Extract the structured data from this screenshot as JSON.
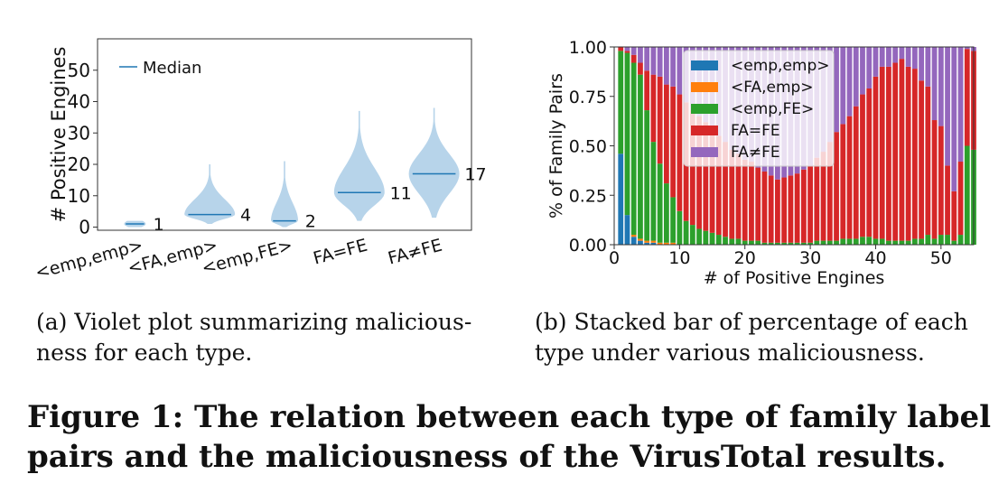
{
  "figure_title": "Figure 1: The relation between each type of family label pairs and the maliciousness of the VirusTotal results.",
  "subfigures": {
    "a": {
      "caption": "(a)  Violet plot summarizing malicious-ness for each type."
    },
    "b": {
      "caption": "(b)  Stacked bar of percentage of each type under various maliciousness."
    }
  },
  "chart_data": [
    {
      "type": "violin",
      "ylabel": "# Positive Engines",
      "ylim": [
        -1,
        60
      ],
      "yticks": [
        0,
        10,
        20,
        30,
        40,
        50
      ],
      "legend": {
        "entries": [
          "Median"
        ],
        "position": "top-left"
      },
      "categories": [
        "<emp,emp>",
        "<FA,emp>",
        "<emp,FE>",
        "FA=FE",
        "FA≠FE"
      ],
      "medians": [
        1,
        4,
        2,
        11,
        17
      ],
      "median_labels": [
        "1",
        "4",
        "2",
        "11",
        "17"
      ],
      "ranges": [
        [
          0,
          2
        ],
        [
          1,
          20
        ],
        [
          0,
          21
        ],
        [
          2,
          37
        ],
        [
          3,
          38
        ]
      ],
      "color": "#b7d4ea",
      "median_color": "#1f77b4"
    },
    {
      "type": "stacked_bar",
      "xlabel": "# of Positive Engines",
      "ylabel": "% of Family Pairs",
      "xlim": [
        0,
        55
      ],
      "ylim": [
        0,
        1
      ],
      "xticks": [
        0,
        10,
        20,
        30,
        40,
        50
      ],
      "yticks": [
        0.0,
        0.25,
        0.5,
        0.75,
        1.0
      ],
      "ytick_labels": [
        "0.00",
        "0.25",
        "0.50",
        "0.75",
        "1.00"
      ],
      "legend_position": "top-center",
      "x": [
        1,
        2,
        3,
        4,
        5,
        6,
        7,
        8,
        9,
        10,
        11,
        12,
        13,
        14,
        15,
        16,
        17,
        18,
        19,
        20,
        21,
        22,
        23,
        24,
        25,
        26,
        27,
        28,
        29,
        30,
        31,
        32,
        33,
        34,
        35,
        36,
        37,
        38,
        39,
        40,
        41,
        42,
        43,
        44,
        45,
        46,
        47,
        48,
        49,
        50,
        51,
        52,
        53,
        54,
        55
      ],
      "series": [
        {
          "name": "<emp,emp>",
          "color": "#1f77b4",
          "values": [
            0.46,
            0.15,
            0.04,
            0.02,
            0.01,
            0.01,
            0,
            0,
            0,
            0,
            0,
            0,
            0,
            0,
            0,
            0,
            0,
            0,
            0,
            0,
            0,
            0,
            0,
            0,
            0,
            0,
            0,
            0,
            0,
            0,
            0,
            0,
            0,
            0,
            0,
            0,
            0,
            0,
            0,
            0,
            0,
            0,
            0,
            0,
            0,
            0,
            0,
            0,
            0,
            0,
            0,
            0,
            0,
            0,
            0
          ]
        },
        {
          "name": "<FA,emp>",
          "color": "#ff7f0e",
          "values": [
            0,
            0,
            0.01,
            0.01,
            0.01,
            0.01,
            0.01,
            0.01,
            0.01,
            0,
            0,
            0,
            0,
            0,
            0,
            0,
            0,
            0,
            0,
            0,
            0,
            0,
            0,
            0,
            0,
            0,
            0,
            0,
            0,
            0,
            0,
            0,
            0,
            0,
            0,
            0,
            0,
            0,
            0,
            0,
            0,
            0,
            0,
            0,
            0,
            0,
            0,
            0,
            0,
            0,
            0,
            0,
            0,
            0,
            0
          ]
        },
        {
          "name": "<emp,FE>",
          "color": "#2ca02c",
          "values": [
            0.52,
            0.82,
            0.87,
            0.83,
            0.66,
            0.5,
            0.4,
            0.3,
            0.23,
            0.17,
            0.12,
            0.1,
            0.08,
            0.07,
            0.06,
            0.05,
            0.04,
            0.03,
            0.03,
            0.02,
            0.02,
            0.02,
            0.01,
            0.01,
            0.01,
            0.01,
            0.01,
            0.01,
            0.01,
            0.01,
            0.02,
            0.02,
            0.02,
            0.02,
            0.03,
            0.03,
            0.03,
            0.04,
            0.04,
            0.03,
            0.03,
            0.02,
            0.02,
            0.02,
            0.02,
            0.03,
            0.03,
            0.05,
            0.03,
            0.05,
            0.05,
            0.02,
            0.05,
            0.5,
            0.48
          ]
        },
        {
          "name": "FA=FE",
          "color": "#d62728",
          "values": [
            0.02,
            0.01,
            0.04,
            0.06,
            0.2,
            0.34,
            0.44,
            0.5,
            0.56,
            0.59,
            0.6,
            0.58,
            0.57,
            0.55,
            0.53,
            0.5,
            0.48,
            0.45,
            0.43,
            0.41,
            0.4,
            0.37,
            0.36,
            0.34,
            0.32,
            0.33,
            0.34,
            0.35,
            0.37,
            0.39,
            0.42,
            0.45,
            0.5,
            0.55,
            0.58,
            0.62,
            0.67,
            0.72,
            0.75,
            0.82,
            0.87,
            0.88,
            0.9,
            0.92,
            0.88,
            0.86,
            0.8,
            0.75,
            0.6,
            0.55,
            0.35,
            0.25,
            0.37,
            0.49,
            0.5
          ]
        },
        {
          "name": "FA≠FE",
          "color": "#9467bd",
          "values": [
            0,
            0.02,
            0.04,
            0.08,
            0.12,
            0.14,
            0.15,
            0.19,
            0.2,
            0.24,
            0.28,
            0.32,
            0.35,
            0.38,
            0.41,
            0.45,
            0.48,
            0.52,
            0.54,
            0.57,
            0.58,
            0.61,
            0.63,
            0.65,
            0.67,
            0.66,
            0.65,
            0.64,
            0.62,
            0.6,
            0.56,
            0.53,
            0.48,
            0.43,
            0.39,
            0.35,
            0.3,
            0.24,
            0.21,
            0.15,
            0.1,
            0.1,
            0.08,
            0.06,
            0.1,
            0.11,
            0.17,
            0.2,
            0.37,
            0.4,
            0.6,
            0.73,
            0.58,
            0.01,
            0.02
          ]
        }
      ]
    }
  ]
}
